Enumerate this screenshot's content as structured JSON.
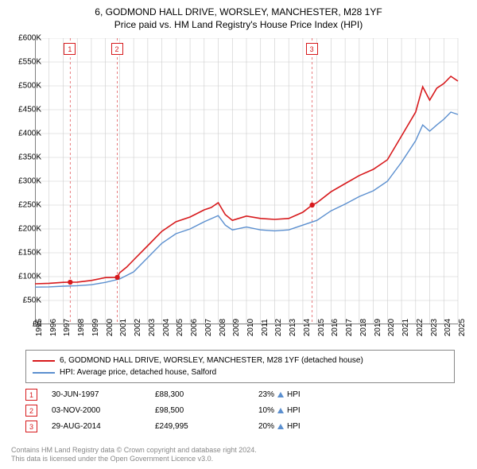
{
  "title_line1": "6, GODMOND HALL DRIVE, WORSLEY, MANCHESTER, M28 1YF",
  "title_line2": "Price paid vs. HM Land Registry's House Price Index (HPI)",
  "chart": {
    "type": "line",
    "background_color": "#ffffff",
    "grid_color": "#cccccc",
    "axis_color": "#000000",
    "ylim": [
      0,
      600000
    ],
    "ytick_step": 50000,
    "y_labels": [
      "£0",
      "£50K",
      "£100K",
      "£150K",
      "£200K",
      "£250K",
      "£300K",
      "£350K",
      "£400K",
      "£450K",
      "£500K",
      "£550K",
      "£600K"
    ],
    "xlim": [
      1995,
      2025
    ],
    "x_labels": [
      "1995",
      "1996",
      "1997",
      "1998",
      "1999",
      "2000",
      "2001",
      "2002",
      "2003",
      "2004",
      "2005",
      "2006",
      "2007",
      "2008",
      "2009",
      "2010",
      "2011",
      "2012",
      "2013",
      "2014",
      "2015",
      "2016",
      "2017",
      "2018",
      "2019",
      "2020",
      "2021",
      "2022",
      "2023",
      "2024",
      "2025"
    ],
    "series": [
      {
        "name": "6, GODMOND HALL DRIVE, WORSLEY, MANCHESTER, M28 1YF (detached house)",
        "color": "#d7191c",
        "line_width": 1.6,
        "data": [
          [
            1995,
            85000
          ],
          [
            1996,
            86000
          ],
          [
            1997,
            88000
          ],
          [
            1997.5,
            88300
          ],
          [
            1998,
            88500
          ],
          [
            1999,
            92000
          ],
          [
            2000,
            98000
          ],
          [
            2000.84,
            98500
          ],
          [
            2001,
            108000
          ],
          [
            2001.5,
            120000
          ],
          [
            2002,
            135000
          ],
          [
            2003,
            165000
          ],
          [
            2004,
            195000
          ],
          [
            2005,
            215000
          ],
          [
            2006,
            225000
          ],
          [
            2007,
            240000
          ],
          [
            2007.5,
            245000
          ],
          [
            2008,
            255000
          ],
          [
            2008.5,
            230000
          ],
          [
            2009,
            218000
          ],
          [
            2010,
            227000
          ],
          [
            2011,
            222000
          ],
          [
            2012,
            220000
          ],
          [
            2013,
            222000
          ],
          [
            2014,
            235000
          ],
          [
            2014.66,
            249995
          ],
          [
            2015,
            255000
          ],
          [
            2016,
            278000
          ],
          [
            2017,
            295000
          ],
          [
            2018,
            312000
          ],
          [
            2019,
            325000
          ],
          [
            2020,
            345000
          ],
          [
            2021,
            395000
          ],
          [
            2022,
            445000
          ],
          [
            2022.5,
            498000
          ],
          [
            2023,
            470000
          ],
          [
            2023.5,
            495000
          ],
          [
            2024,
            505000
          ],
          [
            2024.5,
            520000
          ],
          [
            2025,
            510000
          ]
        ]
      },
      {
        "name": "HPI: Average price, detached house, Salford",
        "color": "#5b8fcf",
        "line_width": 1.4,
        "data": [
          [
            1995,
            78000
          ],
          [
            1996,
            78500
          ],
          [
            1997,
            80000
          ],
          [
            1998,
            81000
          ],
          [
            1999,
            83000
          ],
          [
            2000,
            88000
          ],
          [
            2001,
            95000
          ],
          [
            2002,
            110000
          ],
          [
            2003,
            140000
          ],
          [
            2004,
            170000
          ],
          [
            2005,
            190000
          ],
          [
            2006,
            200000
          ],
          [
            2007,
            215000
          ],
          [
            2008,
            228000
          ],
          [
            2008.5,
            208000
          ],
          [
            2009,
            198000
          ],
          [
            2010,
            204000
          ],
          [
            2011,
            198000
          ],
          [
            2012,
            196000
          ],
          [
            2013,
            198000
          ],
          [
            2014,
            208000
          ],
          [
            2015,
            218000
          ],
          [
            2016,
            238000
          ],
          [
            2017,
            252000
          ],
          [
            2018,
            268000
          ],
          [
            2019,
            280000
          ],
          [
            2020,
            300000
          ],
          [
            2021,
            340000
          ],
          [
            2022,
            385000
          ],
          [
            2022.5,
            418000
          ],
          [
            2023,
            405000
          ],
          [
            2023.5,
            418000
          ],
          [
            2024,
            430000
          ],
          [
            2024.5,
            445000
          ],
          [
            2025,
            440000
          ]
        ]
      }
    ],
    "markers": [
      {
        "num": "1",
        "color": "#d7191c",
        "x": 1997.5,
        "y": 88300
      },
      {
        "num": "2",
        "color": "#d7191c",
        "x": 2000.84,
        "y": 98500
      },
      {
        "num": "3",
        "color": "#d7191c",
        "x": 2014.66,
        "y": 249995
      }
    ],
    "marker_line_color": "#d7191c",
    "marker_line_dash": "3,3"
  },
  "legend": {
    "items": [
      {
        "label": "6, GODMOND HALL DRIVE, WORSLEY, MANCHESTER, M28 1YF (detached house)",
        "color": "#d7191c"
      },
      {
        "label": "HPI: Average price, detached house, Salford",
        "color": "#5b8fcf"
      }
    ]
  },
  "sales": [
    {
      "num": "1",
      "date": "30-JUN-1997",
      "price": "£88,300",
      "pct": "23%",
      "suffix": "HPI",
      "color": "#d7191c"
    },
    {
      "num": "2",
      "date": "03-NOV-2000",
      "price": "£98,500",
      "pct": "10%",
      "suffix": "HPI",
      "color": "#d7191c"
    },
    {
      "num": "3",
      "date": "29-AUG-2014",
      "price": "£249,995",
      "pct": "20%",
      "suffix": "HPI",
      "color": "#d7191c"
    }
  ],
  "footer_line1": "Contains HM Land Registry data © Crown copyright and database right 2024.",
  "footer_line2": "This data is licensed under the Open Government Licence v3.0."
}
